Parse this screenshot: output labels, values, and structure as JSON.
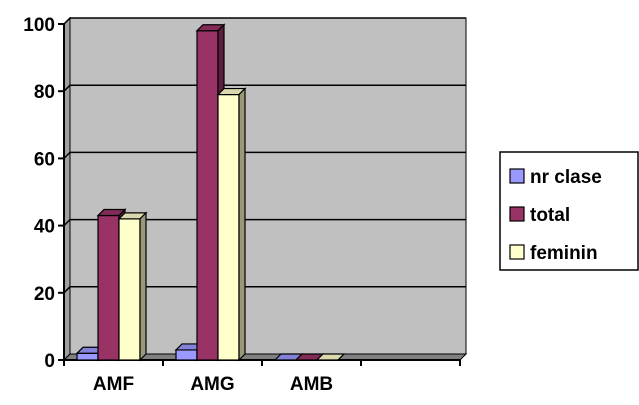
{
  "chart_data": {
    "type": "bar",
    "title": "",
    "xlabel": "",
    "ylabel": "",
    "ylim": [
      0,
      100
    ],
    "yticks": [
      0,
      20,
      40,
      60,
      80,
      100
    ],
    "grid": true,
    "style": "3d-clustered",
    "legend_position": "right",
    "plot_background": "#c0c0c0",
    "categories": [
      "AMF",
      "AMG",
      "AMB",
      ""
    ],
    "series": [
      {
        "name": "nr clase",
        "values": [
          2,
          3,
          0,
          null
        ],
        "color": "#9999ff"
      },
      {
        "name": "total",
        "values": [
          43,
          98,
          0,
          null
        ],
        "color": "#993366"
      },
      {
        "name": "feminin",
        "values": [
          42,
          79,
          0,
          null
        ],
        "color": "#ffffcc"
      }
    ]
  }
}
